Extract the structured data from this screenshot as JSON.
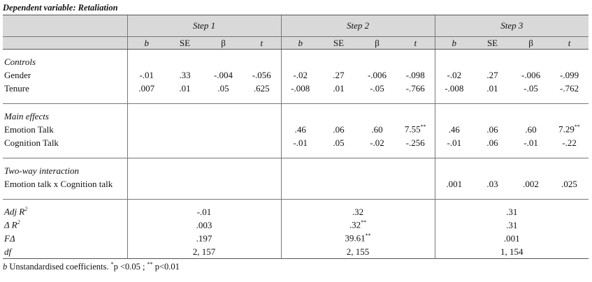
{
  "caption": "Dependent variable: Retaliation",
  "steps": [
    "Step 1",
    "Step 2",
    "Step 3"
  ],
  "columns": [
    "b",
    "SE",
    "β",
    "t"
  ],
  "sections": [
    {
      "title": "Controls",
      "rows": [
        {
          "label": "Gender",
          "cells": [
            "-.01",
            ".33",
            "-.004",
            "-.056",
            "-.02",
            ".27",
            "-.006",
            "-.098",
            "-.02",
            ".27",
            "-.006",
            "-.099"
          ]
        },
        {
          "label": "Tenure",
          "cells": [
            ".007",
            ".01",
            ".05",
            ".625",
            "-.008",
            ".01",
            "-.05",
            "-.766",
            "-.008",
            ".01",
            "-.05",
            "-.762"
          ]
        }
      ]
    },
    {
      "title": "Main effects",
      "rows": [
        {
          "label": "Emotion Talk",
          "cells": [
            null,
            null,
            null,
            null,
            ".46",
            ".06",
            ".60",
            {
              "text": "7.55",
              "sup": "**"
            },
            ".46",
            ".06",
            ".60",
            {
              "text": "7.29",
              "sup": "**"
            }
          ]
        },
        {
          "label": "Cognition Talk",
          "cells": [
            null,
            null,
            null,
            null,
            "-.01",
            ".05",
            "-.02",
            "-.256",
            "-.01",
            ".06",
            "-.01",
            "-.22"
          ]
        }
      ]
    },
    {
      "title": "Two-way interaction",
      "rows": [
        {
          "label": "Emotion talk x Cognition talk",
          "cells": [
            null,
            null,
            null,
            null,
            null,
            null,
            null,
            null,
            ".001",
            ".03",
            ".002",
            ".025"
          ]
        }
      ]
    }
  ],
  "fit": [
    {
      "label": {
        "text": "Adj R",
        "sup": "2"
      },
      "cells": [
        "-.01",
        ".32",
        ".31"
      ]
    },
    {
      "label": {
        "text": "Δ R",
        "sup": "2"
      },
      "cells": [
        ".003",
        {
          "text": ".32",
          "sup": "**"
        },
        ".31"
      ]
    },
    {
      "label": "FΔ",
      "cells": [
        ".197",
        {
          "text": "39.61",
          "sup": "**"
        },
        ".001"
      ]
    },
    {
      "label": "df",
      "cells": [
        "2, 157",
        "2, 155",
        "1, 154"
      ]
    }
  ],
  "footnote": {
    "b": "b",
    "text1": " Unstandardised coefficients. ",
    "sup1": "*",
    "text2": "p <0.05 ; ",
    "sup2": "**",
    "text3": " p<0.01"
  }
}
